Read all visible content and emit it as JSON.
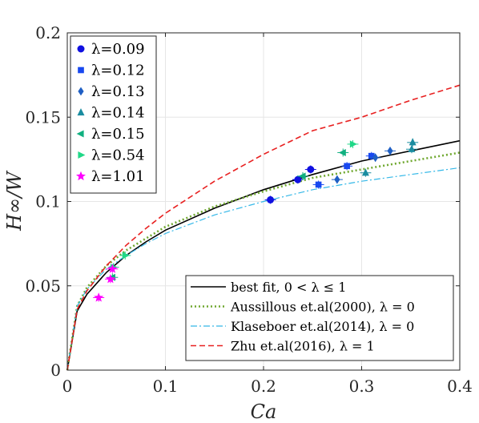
{
  "chart_data": {
    "type": "scatter",
    "xlabel": "Ca",
    "ylabel": "H∞/W",
    "xlim": [
      0,
      0.4
    ],
    "ylim": [
      0,
      0.2
    ],
    "x_ticks": [
      "0",
      "0.1",
      "0.2",
      "0.3",
      "0.4"
    ],
    "y_ticks": [
      "0",
      "0.05",
      "0.1",
      "0.15",
      "0.2"
    ],
    "grid": true,
    "legend_markers_position": "top-left",
    "legend_lines_position": "bottom-right",
    "series": [
      {
        "name": "λ=0.09",
        "marker": "circle",
        "color": "#1010e0",
        "points": [
          [
            0.207,
            0.101
          ],
          [
            0.235,
            0.113
          ],
          [
            0.248,
            0.119
          ]
        ]
      },
      {
        "name": "λ=0.12",
        "marker": "square",
        "color": "#1848f0",
        "points": [
          [
            0.256,
            0.11
          ],
          [
            0.285,
            0.121
          ],
          [
            0.31,
            0.127
          ]
        ]
      },
      {
        "name": "λ=0.13",
        "marker": "diamond",
        "color": "#1f5fc4",
        "points": [
          [
            0.275,
            0.113
          ],
          [
            0.314,
            0.126
          ],
          [
            0.329,
            0.13
          ]
        ]
      },
      {
        "name": "λ=0.14",
        "marker": "triangle-up",
        "color": "#1a8ca0",
        "points": [
          [
            0.304,
            0.117
          ],
          [
            0.351,
            0.131
          ],
          [
            0.352,
            0.135
          ]
        ]
      },
      {
        "name": "λ=0.15",
        "marker": "triangle-left",
        "color": "#10b080",
        "points": [
          [
            0.24,
            0.115
          ],
          [
            0.281,
            0.129
          ],
          [
            0.046,
            0.055
          ]
        ]
      },
      {
        "name": "λ=0.54",
        "marker": "triangle-right",
        "color": "#20d888",
        "points": [
          [
            0.291,
            0.134
          ],
          [
            0.059,
            0.068
          ],
          [
            0.047,
            0.061
          ]
        ]
      },
      {
        "name": "λ=1.01",
        "marker": "star",
        "color": "#ff00ff",
        "points": [
          [
            0.032,
            0.043
          ],
          [
            0.044,
            0.054
          ],
          [
            0.046,
            0.06
          ]
        ]
      }
    ],
    "curves": [
      {
        "name": "best fit, 0 < λ ≤ 1",
        "style": "solid",
        "color": "#000000",
        "x": [
          0,
          0.01,
          0.02,
          0.04,
          0.06,
          0.08,
          0.1,
          0.15,
          0.2,
          0.25,
          0.3,
          0.35,
          0.4
        ],
        "y": [
          0,
          0.035,
          0.045,
          0.058,
          0.068,
          0.076,
          0.083,
          0.096,
          0.107,
          0.116,
          0.124,
          0.13,
          0.136
        ]
      },
      {
        "name": "Aussillous et.al(2000), λ = 0",
        "style": "dotted",
        "color": "#70a830",
        "x": [
          0,
          0.01,
          0.02,
          0.04,
          0.06,
          0.08,
          0.1,
          0.15,
          0.2,
          0.25,
          0.3,
          0.35,
          0.4
        ],
        "y": [
          0,
          0.038,
          0.049,
          0.062,
          0.071,
          0.078,
          0.085,
          0.097,
          0.106,
          0.114,
          0.119,
          0.124,
          0.129
        ]
      },
      {
        "name": "Klaseboer et.al(2014), λ = 0",
        "style": "dashdot",
        "color": "#34b8e8",
        "x": [
          0,
          0.01,
          0.02,
          0.04,
          0.06,
          0.08,
          0.1,
          0.15,
          0.2,
          0.25,
          0.3,
          0.35,
          0.4
        ],
        "y": [
          0,
          0.038,
          0.048,
          0.06,
          0.068,
          0.075,
          0.081,
          0.092,
          0.1,
          0.107,
          0.112,
          0.116,
          0.12
        ]
      },
      {
        "name": "Zhu et.al(2016), λ = 1",
        "style": "dashed",
        "color": "#e82020",
        "x": [
          0,
          0.01,
          0.02,
          0.04,
          0.06,
          0.08,
          0.1,
          0.15,
          0.2,
          0.25,
          0.3,
          0.35,
          0.4
        ],
        "y": [
          0,
          0.036,
          0.047,
          0.062,
          0.074,
          0.084,
          0.093,
          0.112,
          0.128,
          0.142,
          0.15,
          0.16,
          0.169
        ]
      }
    ]
  }
}
